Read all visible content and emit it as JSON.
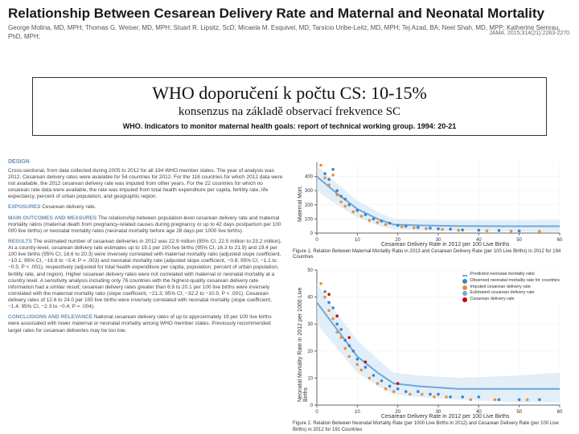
{
  "header": {
    "title": "Relationship Between Cesarean Delivery Rate and Maternal and Neonatal Mortality",
    "authors": "George Molina, MD, MPH; Thomas G. Weiser, MD, MPH; Stuart R. Lipsitz, ScD; Micaela M. Esquivel, MD; Tarsicio Uribe-Leitz, MD, MPH; Tej Azad, BA; Neel Shah, MD, MPP; Katherine Semrau, PhD, MPH;",
    "journal": "JAMA. 2015;314(21):2263-2270."
  },
  "overlay": {
    "main": "WHO doporučení k počtu CS: 10-15%",
    "sub": "konsenzus na základě observací frekvence SC",
    "cite": "WHO. Indicators to monitor maternal health goals: report of technical working group. 1994: 20-21"
  },
  "abstract": {
    "design_label": "DESIGN",
    "design": "Cross-sectional, from data collected during 2005 to 2012 for all 194 WHO member states. The year of analysis was 2012. Cesarean delivery rates were available for 54 countries for 2012. For the 118 countries for which 2012 data were not available, the 2012 cesarean delivery rate was imputed from other years. For the 22 countries for which no cesarean rate data were available, the rate was imputed from total health expenditure per capita, fertility rate, life expectancy, percent of urban population, and geographic region.",
    "exposures_label": "EXPOSURES",
    "exposures": "Cesarean delivery rate.",
    "outcomes_label": "MAIN OUTCOMES AND MEASURES",
    "outcomes": "The relationship between population-level cesarean delivery rate and maternal mortality ratios (maternal death from pregnancy-related causes during pregnancy or up to 42 days postpartum per 100 000 live births) or neonatal mortality rates (neonatal mortality before age 28 days per 1000 live births).",
    "results_label": "RESULTS",
    "results": "The estimated number of cesarean deliveries in 2012 was 22.9 million (95% CI, 22.5 million to 23.2 million). At a country-level, cesarean delivery rate estimates up to 19.1 per 100 live births (95% CI, 16.3 to 21.9) and 19.4 per 100 live births (95% CI, 18.6 to 20.3) were inversely correlated with maternal mortality ratio (adjusted slope coefficient, −10.1; 95% CI, −16.8 to −3.4; P = .003) and neonatal mortality rate (adjusted slope coefficient, −0.8; 95% CI, −1.1 to −0.5; P < .001), respectively (adjusted for total health expenditure per capita, population, percent of urban population, fertility rate, and region). Higher cesarean delivery rates were not correlated with maternal or neonatal mortality at a country level. A sensitivity analysis including only 76 countries with the highest-quality cesarean delivery rate information had a similar result; cesarean delivery rates greater than 6.9 to 20.1 per 100 live births were inversely correlated with the maternal mortality ratio (slope coefficient, −21.3; 95% CI, −32.2 to −10.5; P < .001). Cesarean delivery rates of 12.6 to 24.0 per 100 live births were inversely correlated with neonatal mortality (slope coefficient, −1.4; 95% CI, −2.3 to −0.4; P = .004).",
    "conclusions_label": "CONCLUSIONS AND RELEVANCE",
    "conclusions": "National cesarean delivery rates of up to approximately 19 per 100 live births were associated with lower maternal or neonatal mortality among WHO member states. Previously recommended target rates for cesarean deliveries may be too low."
  },
  "fig1": {
    "caption": "Figure 1. Relation Between Maternal Mortality Ratio in 2013 and Cesarean Delivery Rate (per 100 Live Births) in 2012 for 194 Countries",
    "xlabel": "Cesarean Delivery Rate in 2012 per 100 Live Births",
    "ylabel": "Maternal Mort.",
    "xlim": [
      0,
      60
    ],
    "ylim": [
      0,
      500
    ],
    "xticks": [
      0,
      10,
      20,
      30,
      40,
      50,
      60
    ],
    "yticks": [
      0,
      100,
      200,
      300,
      400
    ],
    "line_color": "#6fa8dc",
    "band_color": "#cfe2f3",
    "point_color_obs": "#3d85c6",
    "point_color_imp": "#e69138",
    "fit_x": [
      0,
      5,
      10,
      15,
      19,
      25,
      35,
      50,
      60
    ],
    "fit_y": [
      400,
      280,
      170,
      100,
      60,
      55,
      50,
      48,
      48
    ],
    "band_upper": [
      480,
      350,
      230,
      150,
      100,
      95,
      90,
      90,
      95
    ],
    "band_lower": [
      300,
      200,
      110,
      55,
      25,
      20,
      15,
      10,
      8
    ],
    "points_obs": [
      [
        2,
        420
      ],
      [
        3,
        380
      ],
      [
        4,
        450
      ],
      [
        5,
        300
      ],
      [
        6,
        260
      ],
      [
        7,
        240
      ],
      [
        8,
        200
      ],
      [
        10,
        160
      ],
      [
        12,
        130
      ],
      [
        14,
        100
      ],
      [
        16,
        85
      ],
      [
        18,
        70
      ],
      [
        20,
        55
      ],
      [
        22,
        48
      ],
      [
        25,
        40
      ],
      [
        28,
        35
      ],
      [
        30,
        30
      ],
      [
        33,
        28
      ],
      [
        36,
        22
      ],
      [
        40,
        20
      ],
      [
        45,
        18
      ],
      [
        50,
        15
      ]
    ],
    "points_imp": [
      [
        1,
        480
      ],
      [
        2,
        390
      ],
      [
        3,
        340
      ],
      [
        4,
        410
      ],
      [
        5,
        270
      ],
      [
        6,
        220
      ],
      [
        7,
        190
      ],
      [
        9,
        150
      ],
      [
        11,
        120
      ],
      [
        13,
        90
      ],
      [
        15,
        75
      ],
      [
        17,
        60
      ],
      [
        21,
        45
      ],
      [
        24,
        38
      ],
      [
        27,
        32
      ],
      [
        31,
        26
      ],
      [
        35,
        20
      ],
      [
        42,
        16
      ],
      [
        48,
        14
      ],
      [
        55,
        12
      ]
    ]
  },
  "fig2": {
    "caption": "Figure 2. Relation Between Neonatal Mortality Rate (per 1000 Live Births in 2012) and Cesarean Delivery Rate (per 100 Live Births) in 2012 for 191 Countries",
    "xlabel": "Cesarean Delivery Rate in 2012 per 100 Live Births",
    "ylabel": "Neonatal Mortality Rate in 2012 per 1000 Live Births",
    "xlim": [
      0,
      60
    ],
    "ylim": [
      0,
      50
    ],
    "xticks": [
      0,
      10,
      20,
      30,
      40,
      50,
      60
    ],
    "yticks": [
      0,
      10,
      20,
      30,
      40,
      50
    ],
    "line_color": "#6fa8dc",
    "band_color": "#cfe2f3",
    "point_color_obs": "#3d85c6",
    "point_color_imp": "#e69138",
    "point_color_est": "#cc0000",
    "fit_x": [
      0,
      5,
      10,
      15,
      19,
      25,
      35,
      50,
      60
    ],
    "fit_y": [
      38,
      28,
      18,
      12,
      8,
      7,
      6,
      6,
      6
    ],
    "band_upper": [
      45,
      34,
      24,
      17,
      12,
      11,
      10,
      11,
      12
    ],
    "band_lower": [
      30,
      21,
      12,
      7,
      4,
      3,
      2,
      1,
      1
    ],
    "points_obs": [
      [
        2,
        42
      ],
      [
        3,
        38
      ],
      [
        4,
        36
      ],
      [
        5,
        30
      ],
      [
        6,
        28
      ],
      [
        7,
        24
      ],
      [
        8,
        22
      ],
      [
        9,
        20
      ],
      [
        10,
        17
      ],
      [
        12,
        14
      ],
      [
        14,
        11
      ],
      [
        16,
        9
      ],
      [
        18,
        7
      ],
      [
        20,
        6
      ],
      [
        22,
        5
      ],
      [
        25,
        5
      ],
      [
        28,
        4
      ],
      [
        30,
        4
      ],
      [
        33,
        3
      ],
      [
        36,
        3
      ],
      [
        40,
        3
      ],
      [
        45,
        2
      ],
      [
        50,
        2
      ],
      [
        55,
        2
      ]
    ],
    "points_imp": [
      [
        1,
        45
      ],
      [
        2,
        40
      ],
      [
        3,
        35
      ],
      [
        4,
        32
      ],
      [
        5,
        27
      ],
      [
        6,
        25
      ],
      [
        7,
        21
      ],
      [
        8,
        18
      ],
      [
        10,
        15
      ],
      [
        11,
        13
      ],
      [
        13,
        10
      ],
      [
        15,
        8
      ],
      [
        17,
        6
      ],
      [
        19,
        5
      ],
      [
        23,
        4
      ],
      [
        26,
        4
      ],
      [
        29,
        3
      ],
      [
        32,
        3
      ],
      [
        38,
        2
      ],
      [
        44,
        2
      ],
      [
        52,
        2
      ]
    ],
    "points_est": [
      [
        3,
        41
      ],
      [
        5,
        33
      ],
      [
        8,
        25
      ],
      [
        12,
        16
      ],
      [
        20,
        8
      ]
    ],
    "legend": {
      "predicted": "Predicted neonatal mortality ratio",
      "observed": "Observed neonatal mortality rate for countries",
      "imputed": "Imputed cesarean delivery rate",
      "estimated": "Estimated cesarean delivery rate",
      "cs_est": "Cesarean delivery rate"
    }
  }
}
